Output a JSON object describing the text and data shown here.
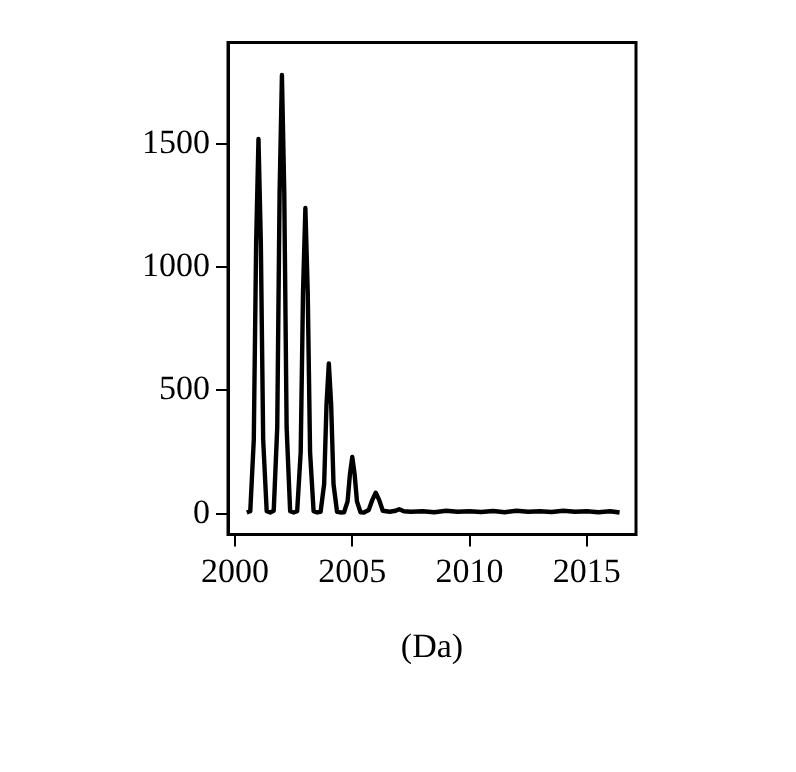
{
  "chart_data": {
    "type": "line",
    "xlabel": "(Da)",
    "color": "#000000",
    "marker": "none",
    "grid": false,
    "legend": false,
    "xlim": [
      1999.7,
      2017.1
    ],
    "ylim": [
      -84,
      1912
    ],
    "xticks": [
      2000,
      2005,
      2010,
      2015
    ],
    "yticks": [
      0,
      500,
      1000,
      1500
    ],
    "x": [
      2000.5,
      2000.65,
      2000.8,
      2000.9,
      2001,
      2001.1,
      2001.2,
      2001.35,
      2001.5,
      2001.65,
      2001.8,
      2001.9,
      2002,
      2002.1,
      2002.2,
      2002.35,
      2002.5,
      2002.65,
      2002.8,
      2002.9,
      2003,
      2003.1,
      2003.2,
      2003.35,
      2003.5,
      2003.65,
      2003.8,
      2003.9,
      2004,
      2004.1,
      2004.2,
      2004.35,
      2004.5,
      2004.65,
      2004.8,
      2004.9,
      2005,
      2005.1,
      2005.2,
      2005.35,
      2005.5,
      2005.7,
      2005.85,
      2006,
      2006.15,
      2006.3,
      2006.6,
      2006.85,
      2007,
      2007.2,
      2007.5,
      2008,
      2008.5,
      2009,
      2009.5,
      2010,
      2010.5,
      2011,
      2011.5,
      2012,
      2012.5,
      2013,
      2013.5,
      2014,
      2014.5,
      2015,
      2015.5,
      2016,
      2016.4
    ],
    "values": [
      5,
      10,
      300,
      1100,
      1520,
      1100,
      300,
      10,
      5,
      12,
      350,
      1300,
      1780,
      1300,
      350,
      10,
      5,
      10,
      250,
      900,
      1240,
      900,
      250,
      10,
      5,
      8,
      120,
      440,
      610,
      440,
      120,
      8,
      5,
      6,
      50,
      160,
      230,
      160,
      50,
      6,
      5,
      15,
      55,
      85,
      55,
      12,
      8,
      12,
      18,
      10,
      8,
      10,
      6,
      12,
      8,
      10,
      7,
      11,
      6,
      12,
      8,
      10,
      7,
      12,
      8,
      10,
      6,
      10,
      5
    ]
  }
}
